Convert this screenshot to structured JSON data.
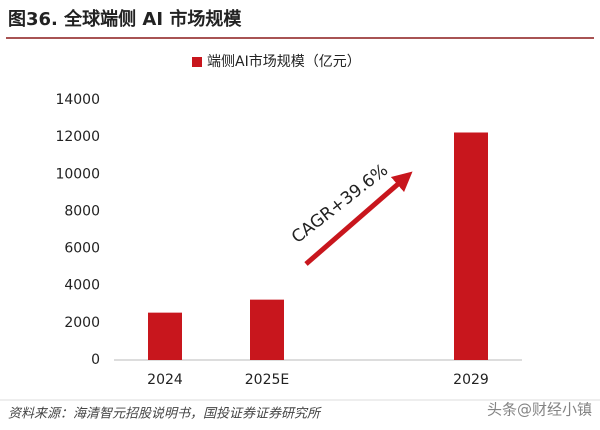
{
  "chart_data": {
    "type": "bar",
    "title": "图36. 全球端侧 AI 市场规模",
    "categories": [
      "2024",
      "2025E",
      null,
      "2029"
    ],
    "series": [
      {
        "name": "端侧AI市场规模（亿元）",
        "color": "#c8161d",
        "values": [
          2550,
          3250,
          null,
          12250
        ]
      }
    ],
    "ylim": [
      0,
      14000
    ],
    "yticks": [
      0,
      2000,
      4000,
      6000,
      8000,
      10000,
      12000,
      14000
    ],
    "annotation": "CAGR+39.6%",
    "source": "资料来源：海清智元招股说明书，国投证券证券研究所",
    "watermark": "头条@财经小镇"
  }
}
